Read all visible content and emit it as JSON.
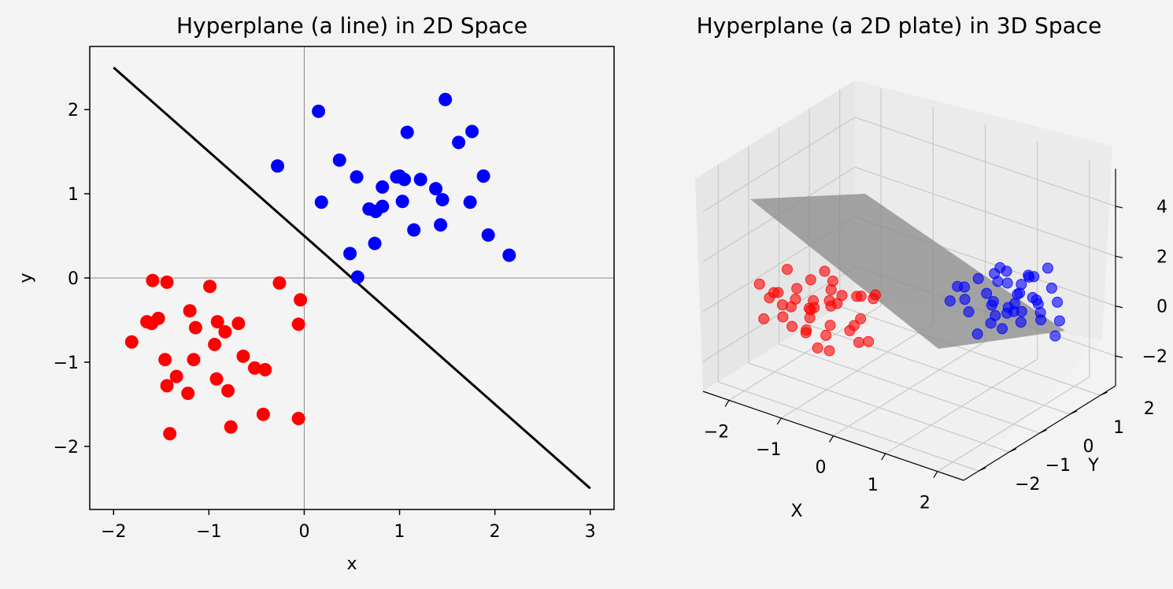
{
  "figure": {
    "background": "#f3f3f3"
  },
  "chart_data": [
    {
      "type": "scatter",
      "title": "Hyperplane (a line) in 2D Space",
      "xlabel": "x",
      "ylabel": "y",
      "xlim": [
        -2.25,
        3.25
      ],
      "ylim": [
        -2.75,
        2.75
      ],
      "xticks": [
        -2,
        -1,
        0,
        1,
        2,
        3
      ],
      "yticks": [
        -2,
        -1,
        0,
        1,
        2
      ],
      "xtick_labels": [
        "−2",
        "−1",
        "0",
        "1",
        "2",
        "3"
      ],
      "ytick_labels": [
        "−2",
        "−1",
        "0",
        "1",
        "2"
      ],
      "axes_background": "#f4f4f4",
      "zero_lines": true,
      "grid": false,
      "hyperplane_line": {
        "x": [
          -2,
          3
        ],
        "y": [
          2.5,
          -2.5
        ],
        "color": "#000000"
      },
      "series": [
        {
          "color": "#0000ff",
          "points": [
            [
              0.15,
              1.98
            ],
            [
              1.48,
              2.12
            ],
            [
              1.08,
              1.73
            ],
            [
              1.76,
              1.74
            ],
            [
              1.62,
              1.61
            ],
            [
              -0.28,
              1.33
            ],
            [
              0.37,
              1.4
            ],
            [
              0.55,
              1.2
            ],
            [
              0.97,
              1.2
            ],
            [
              1.0,
              1.21
            ],
            [
              1.05,
              1.17
            ],
            [
              1.22,
              1.17
            ],
            [
              1.88,
              1.21
            ],
            [
              1.38,
              1.06
            ],
            [
              0.82,
              1.08
            ],
            [
              1.45,
              0.93
            ],
            [
              1.74,
              0.9
            ],
            [
              0.18,
              0.9
            ],
            [
              1.03,
              0.91
            ],
            [
              0.68,
              0.82
            ],
            [
              0.75,
              0.79
            ],
            [
              0.82,
              0.85
            ],
            [
              1.15,
              0.57
            ],
            [
              1.43,
              0.63
            ],
            [
              1.93,
              0.51
            ],
            [
              0.74,
              0.41
            ],
            [
              0.48,
              0.29
            ],
            [
              2.15,
              0.27
            ],
            [
              0.56,
              0.01
            ]
          ]
        },
        {
          "color": "#ff0000",
          "points": [
            [
              -1.59,
              -0.03
            ],
            [
              -1.44,
              -0.05
            ],
            [
              -0.99,
              -0.1
            ],
            [
              -0.26,
              -0.06
            ],
            [
              -0.04,
              -0.26
            ],
            [
              -1.2,
              -0.39
            ],
            [
              -1.65,
              -0.52
            ],
            [
              -1.6,
              -0.54
            ],
            [
              -1.53,
              -0.48
            ],
            [
              -1.14,
              -0.59
            ],
            [
              -0.91,
              -0.52
            ],
            [
              -0.83,
              -0.64
            ],
            [
              -0.69,
              -0.54
            ],
            [
              -0.06,
              -0.55
            ],
            [
              -1.81,
              -0.76
            ],
            [
              -0.94,
              -0.79
            ],
            [
              -0.64,
              -0.93
            ],
            [
              -1.46,
              -0.97
            ],
            [
              -1.16,
              -0.97
            ],
            [
              -0.52,
              -1.07
            ],
            [
              -0.41,
              -1.09
            ],
            [
              -1.34,
              -1.17
            ],
            [
              -0.92,
              -1.2
            ],
            [
              -1.44,
              -1.28
            ],
            [
              -0.8,
              -1.34
            ],
            [
              -1.22,
              -1.37
            ],
            [
              -0.43,
              -1.62
            ],
            [
              -0.06,
              -1.67
            ],
            [
              -0.77,
              -1.77
            ],
            [
              -1.41,
              -1.85
            ]
          ]
        }
      ]
    },
    {
      "type": "scatter3d",
      "title": "Hyperplane (a 2D plate) in 3D Space",
      "xlabel": "X",
      "ylabel": "Y",
      "zlabel": "",
      "xlim": [
        -2.5,
        2.5
      ],
      "ylim": [
        -2.5,
        2.5
      ],
      "zlim": [
        -3.2,
        5.5
      ],
      "xticks": [
        -2,
        -1,
        0,
        1,
        2
      ],
      "yticks": [
        -2,
        -1,
        0,
        1,
        2
      ],
      "zticks": [
        -2,
        0,
        2,
        4
      ],
      "xtick_labels": [
        "−2",
        "−1",
        "0",
        "1",
        "2"
      ],
      "ytick_labels": [
        "−2",
        "−1",
        "0",
        "1",
        "2"
      ],
      "ztick_labels": [
        "−2",
        "0",
        "2",
        "4"
      ],
      "grid": true,
      "plane_color": "#8a8a8a",
      "series": [
        {
          "color": "#0000ff",
          "points": [
            [
              0.2,
              1.0,
              -0.3
            ],
            [
              0.3,
              1.3,
              0.1
            ],
            [
              0.5,
              1.1,
              -0.6
            ],
            [
              0.6,
              0.8,
              0.2
            ],
            [
              0.8,
              1.4,
              -0.2
            ],
            [
              0.9,
              1.0,
              0.5
            ],
            [
              1.0,
              1.2,
              0.9
            ],
            [
              1.1,
              0.8,
              -0.4
            ],
            [
              1.2,
              1.5,
              0.3
            ],
            [
              1.3,
              1.0,
              1.2
            ],
            [
              1.4,
              1.3,
              -0.1
            ],
            [
              1.5,
              0.9,
              0.6
            ],
            [
              1.6,
              1.2,
              1.5
            ],
            [
              1.7,
              1.4,
              0.0
            ],
            [
              1.8,
              1.1,
              0.8
            ],
            [
              1.9,
              1.3,
              2.0
            ],
            [
              2.0,
              0.9,
              0.3
            ],
            [
              2.1,
              1.2,
              -0.5
            ],
            [
              0.7,
              1.6,
              0.7
            ],
            [
              0.9,
              0.7,
              -0.9
            ],
            [
              1.1,
              1.8,
              0.4
            ],
            [
              1.2,
              1.0,
              -0.7
            ],
            [
              1.3,
              0.6,
              0.2
            ],
            [
              1.4,
              1.7,
              1.0
            ],
            [
              1.5,
              1.1,
              -0.3
            ],
            [
              1.6,
              0.7,
              0.5
            ],
            [
              1.7,
              1.0,
              1.8
            ],
            [
              1.8,
              1.6,
              0.9
            ],
            [
              1.0,
              1.0,
              0.1
            ],
            [
              0.8,
              0.9,
              1.1
            ],
            [
              1.3,
              1.4,
              0.5
            ],
            [
              1.9,
              0.8,
              1.2
            ],
            [
              2.2,
              1.1,
              1.0
            ],
            [
              2.3,
              1.0,
              0.4
            ],
            [
              0.4,
              0.9,
              0.5
            ],
            [
              1.1,
              1.1,
              1.6
            ],
            [
              1.4,
              0.8,
              1.9
            ],
            [
              1.0,
              1.5,
              -0.6
            ],
            [
              1.6,
              1.5,
              0.2
            ],
            [
              1.2,
              1.2,
              0.0
            ]
          ]
        },
        {
          "color": "#ff0000",
          "points": [
            [
              -2.1,
              -1.0,
              -0.3
            ],
            [
              -1.9,
              -1.2,
              0.2
            ],
            [
              -1.8,
              -0.8,
              -0.6
            ],
            [
              -1.7,
              -1.4,
              0.5
            ],
            [
              -1.6,
              -1.0,
              0.0
            ],
            [
              -1.5,
              -0.7,
              -0.9
            ],
            [
              -1.4,
              -1.3,
              0.8
            ],
            [
              -1.3,
              -0.9,
              -0.2
            ],
            [
              -1.2,
              -1.1,
              0.3
            ],
            [
              -1.1,
              -1.5,
              -0.5
            ],
            [
              -1.0,
              -0.8,
              1.0
            ],
            [
              -0.9,
              -1.2,
              -0.8
            ],
            [
              -0.8,
              -1.0,
              0.4
            ],
            [
              -0.7,
              -1.4,
              -0.1
            ],
            [
              -0.6,
              -0.7,
              0.6
            ],
            [
              -0.5,
              -1.1,
              -0.4
            ],
            [
              -0.4,
              -0.9,
              0.9
            ],
            [
              -0.3,
              -1.3,
              0.1
            ],
            [
              -0.2,
              -1.0,
              -0.7
            ],
            [
              -2.0,
              -1.5,
              0.7
            ],
            [
              -1.8,
              -1.7,
              -0.4
            ],
            [
              -1.5,
              -1.6,
              0.3
            ],
            [
              -1.2,
              -1.8,
              -0.2
            ],
            [
              -0.9,
              -1.7,
              0.6
            ],
            [
              -0.6,
              -1.6,
              -0.9
            ],
            [
              -1.6,
              -0.5,
              0.4
            ],
            [
              -1.3,
              -0.4,
              -0.3
            ],
            [
              -1.0,
              -0.5,
              0.2
            ],
            [
              -0.7,
              -0.4,
              -0.6
            ],
            [
              -0.4,
              -0.5,
              0.5
            ],
            [
              -1.7,
              -1.1,
              1.2
            ],
            [
              -1.1,
              -0.9,
              1.4
            ],
            [
              -0.8,
              -1.2,
              1.1
            ],
            [
              -1.4,
              -1.0,
              -1.2
            ],
            [
              -1.0,
              -1.3,
              -1.3
            ],
            [
              -0.5,
              -0.8,
              -1.1
            ],
            [
              -0.3,
              -0.6,
              0.8
            ],
            [
              -1.9,
              -0.9,
              -1.0
            ],
            [
              -1.25,
              -1.15,
              0.0
            ],
            [
              -0.95,
              -0.95,
              0.15
            ]
          ]
        }
      ]
    }
  ]
}
